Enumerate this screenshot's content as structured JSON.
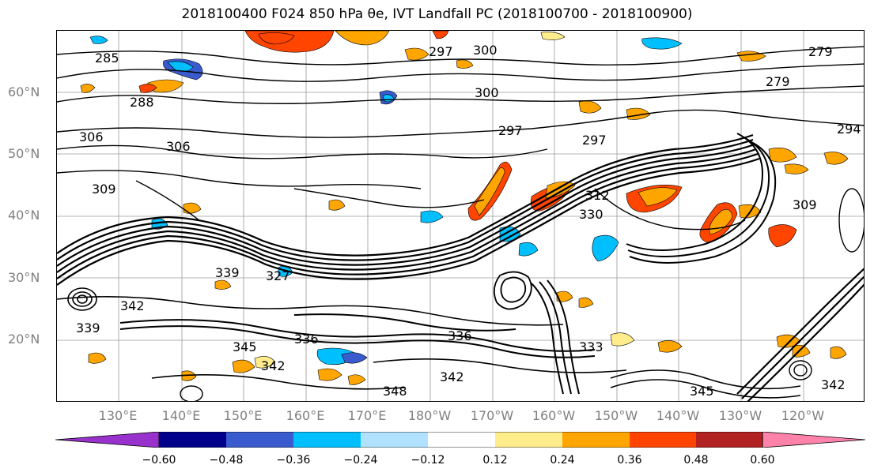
{
  "title": "2018100400 F024 850 hPa θe, IVT Landfall PC (2018100700 - 2018100900)",
  "lat_labels": [
    "60°N",
    "50°N",
    "40°N",
    "30°N",
    "20°N"
  ],
  "lon_labels": [
    "130°E",
    "140°E",
    "150°E",
    "160°E",
    "170°E",
    "180°W",
    "170°W",
    "160°W",
    "150°W",
    "140°W",
    "130°W",
    "120°W"
  ],
  "colorbar": {
    "colors": [
      "#9932cc",
      "#00008b",
      "#3a5bcd",
      "#00bfff",
      "#b0e2ff",
      "#ffffff",
      "#ffec8b",
      "#ffa500",
      "#ff4500",
      "#b22222",
      "#ff82ab"
    ],
    "ticks": [
      "−0.60",
      "−0.48",
      "−0.36",
      "−0.24",
      "−0.12",
      "0.12",
      "0.24",
      "0.36",
      "0.48",
      "0.60"
    ]
  },
  "contour_labels": [
    "285",
    "288",
    "306",
    "309",
    "297",
    "300",
    "300",
    "297",
    "297",
    "306",
    "312",
    "330",
    "309",
    "339",
    "327",
    "342",
    "339",
    "345",
    "342",
    "348",
    "336",
    "336",
    "333",
    "342",
    "345",
    "342",
    "279",
    "279",
    "294"
  ]
}
